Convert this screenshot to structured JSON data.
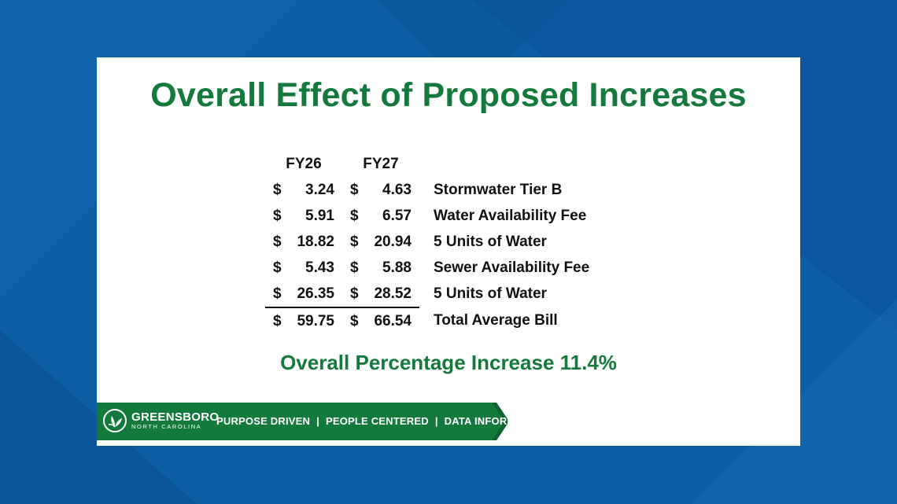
{
  "slide": {
    "title": "Overall Effect of Proposed Increases",
    "table": {
      "headers": [
        "FY26",
        "FY27"
      ],
      "rows": [
        {
          "cur1": "$",
          "fy26": "3.24",
          "cur2": "$",
          "fy27": "4.63",
          "label": "Stormwater Tier B"
        },
        {
          "cur1": "$",
          "fy26": "5.91",
          "cur2": "$",
          "fy27": "6.57",
          "label": "Water Availability Fee"
        },
        {
          "cur1": "$",
          "fy26": "18.82",
          "cur2": "$",
          "fy27": "20.94",
          "label": "5 Units of Water"
        },
        {
          "cur1": "$",
          "fy26": "5.43",
          "cur2": "$",
          "fy27": "5.88",
          "label": "Sewer Availability Fee"
        },
        {
          "cur1": "$",
          "fy26": "26.35",
          "cur2": "$",
          "fy27": "28.52",
          "label": "5 Units of Water"
        },
        {
          "cur1": "$",
          "fy26": "59.75",
          "cur2": "$",
          "fy27": "66.54",
          "label": "Total Average Bill"
        }
      ]
    },
    "summary": "Overall Percentage Increase 11.4%",
    "footer": {
      "logo_city": "GREENSBORO",
      "logo_state": "NORTH CAROLINA",
      "taglines": [
        "PURPOSE DRIVEN",
        "PEOPLE CENTERED",
        "DATA INFORMED"
      ],
      "separator": "|"
    }
  },
  "colors": {
    "background": "#0d5fa8",
    "accent_green": "#137a3c",
    "slide_bg": "#ffffff"
  },
  "icons": {
    "logo": "greensboro-leaf-logo-icon"
  }
}
